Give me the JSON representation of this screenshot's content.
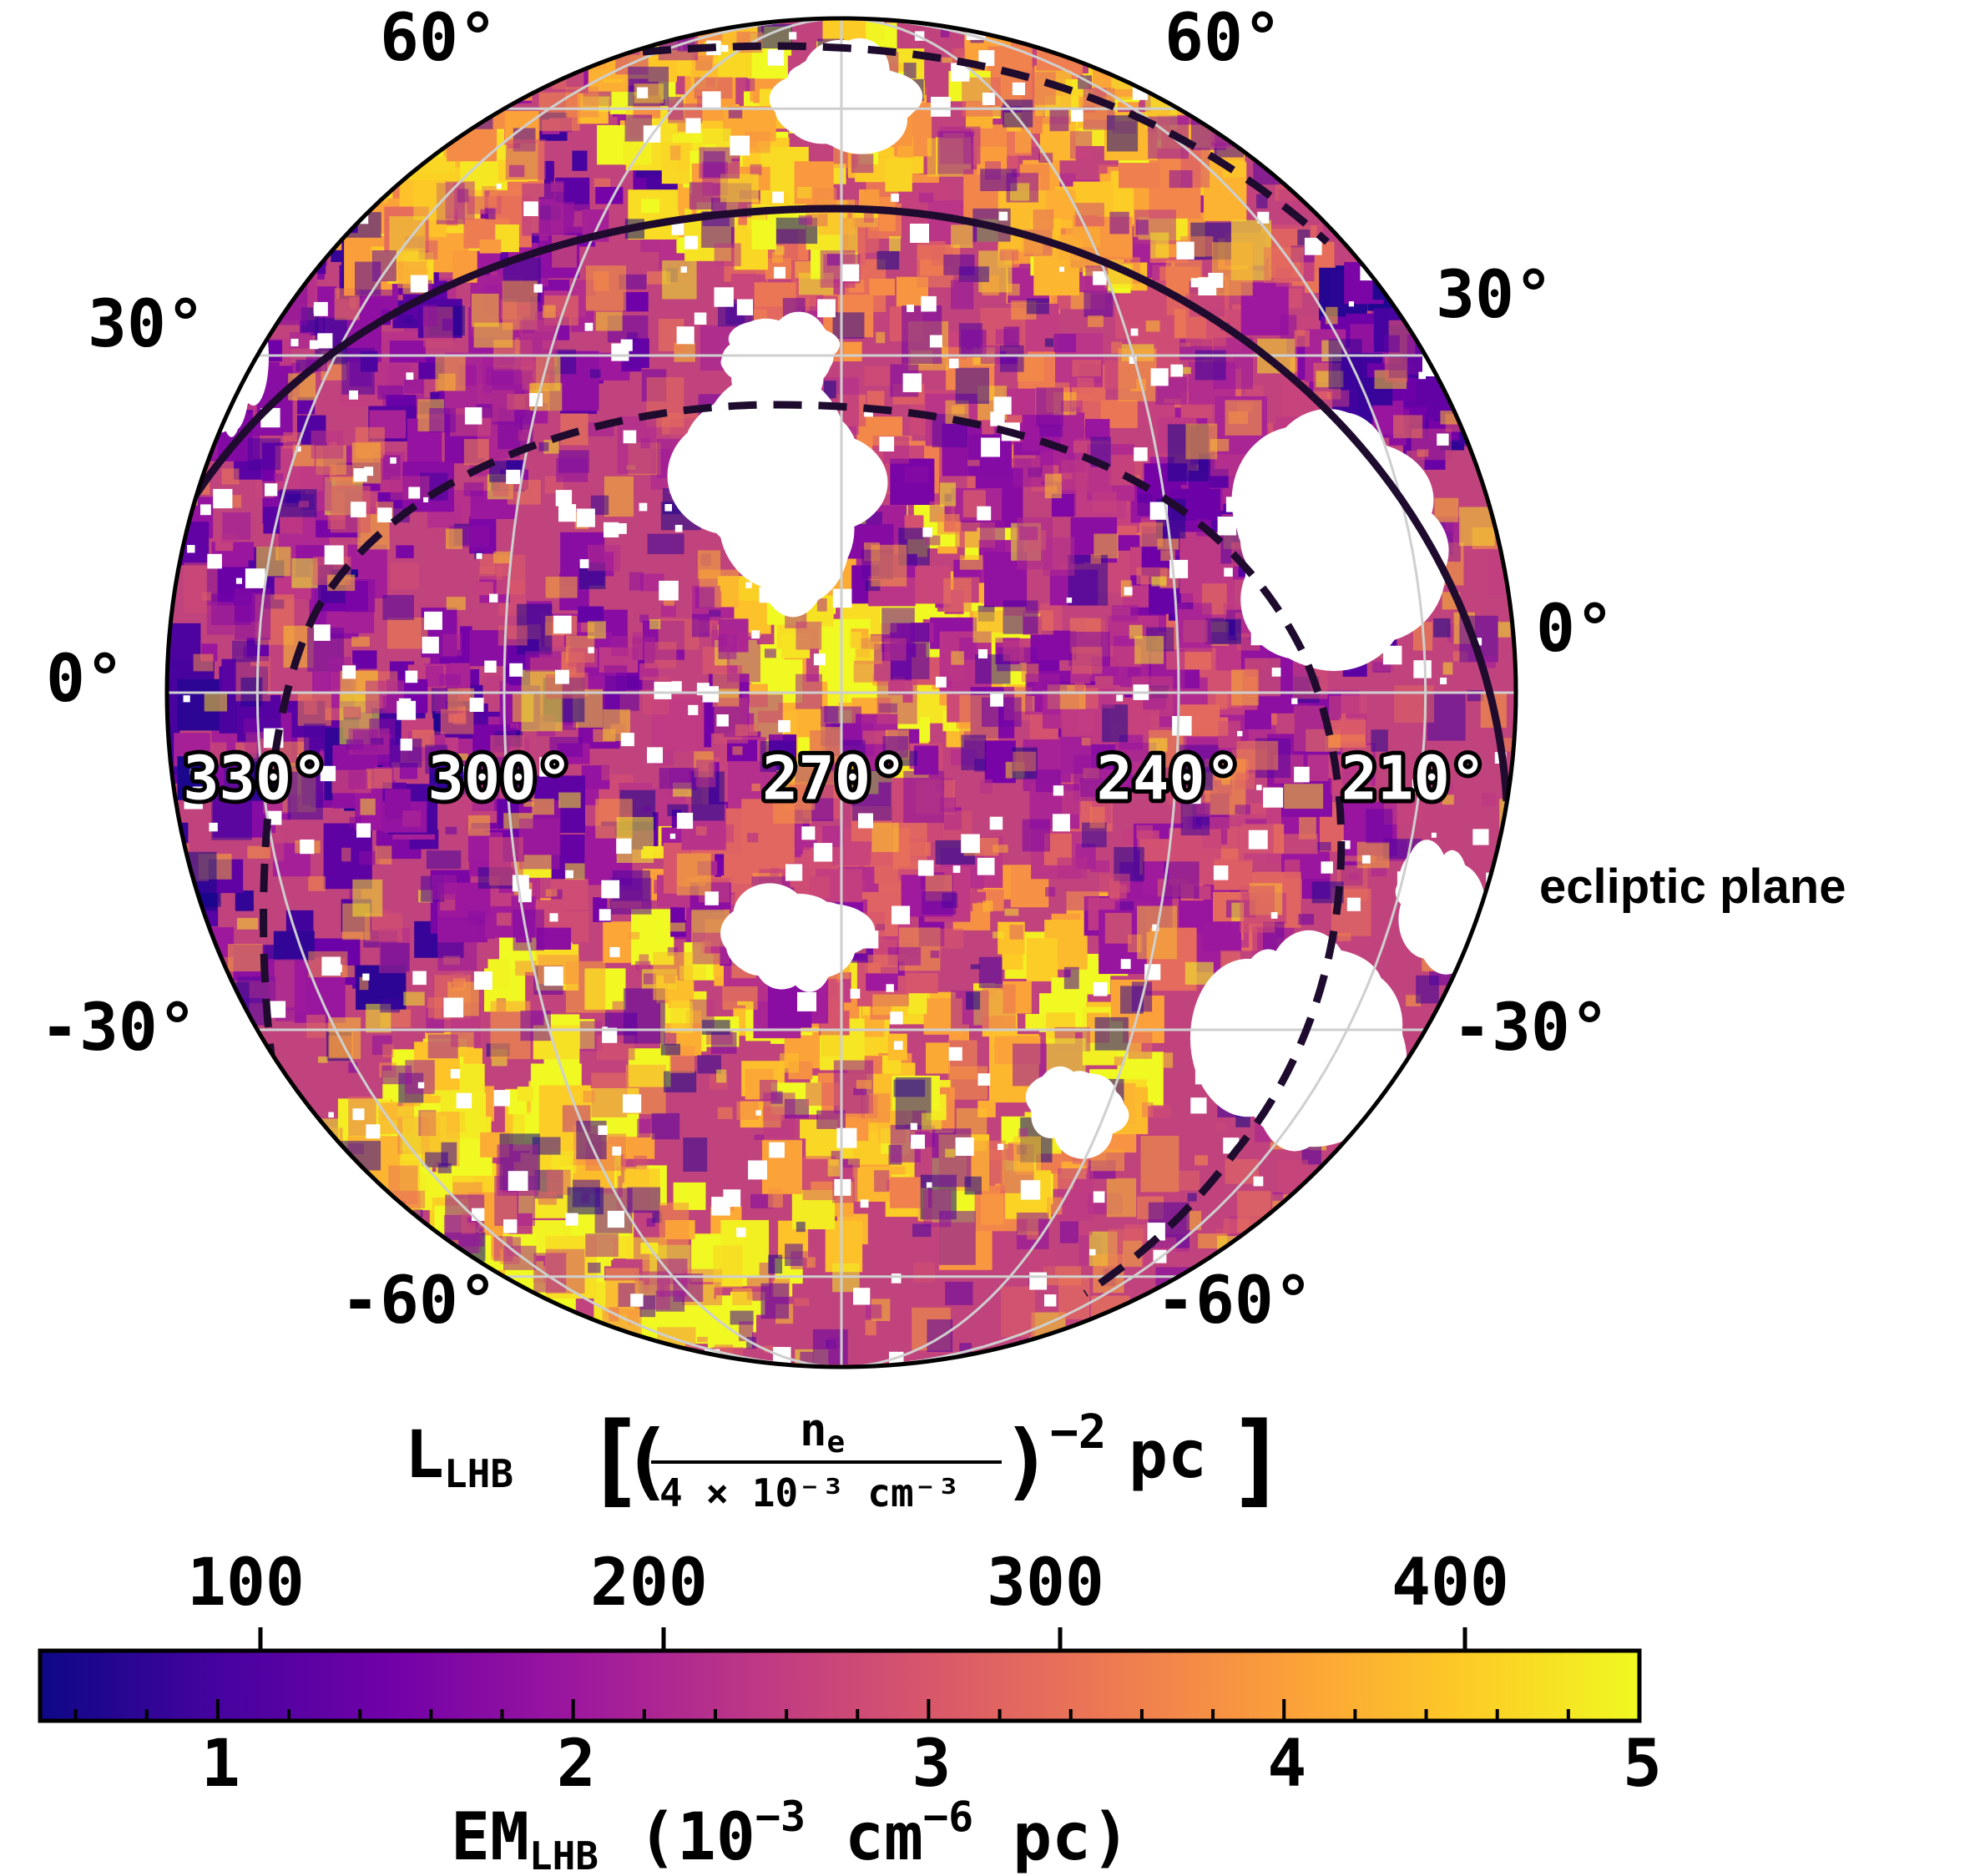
{
  "chart_data": {
    "type": "heatmap",
    "projection": "orthographic-hemisphere",
    "map_center": {
      "lon": 270,
      "lat": 0
    },
    "lat_labels_left": [
      "60°",
      "30°",
      "0°",
      "-30°",
      "-60°"
    ],
    "lat_labels_right": [
      "60°",
      "30°",
      "0°",
      "-30°",
      "-60°"
    ],
    "lat_values_left": [
      60,
      30,
      0,
      -30,
      -60
    ],
    "lat_values_right": [
      60,
      30,
      0,
      -30,
      -60
    ],
    "lon_labels": [
      "330°",
      "300°",
      "270°",
      "240°",
      "210°"
    ],
    "lon_values": [
      330,
      300,
      270,
      240,
      210
    ],
    "lat_grid": [
      -60,
      -30,
      0,
      30,
      60
    ],
    "lon_grid": [
      330,
      300,
      270,
      240,
      210
    ],
    "annotation": "ecliptic plane",
    "colormap": "plasma",
    "colormap_stops": [
      "#0d0887",
      "#46039f",
      "#7201a8",
      "#9c179e",
      "#bd3786",
      "#d8576b",
      "#ed7953",
      "#fb9f3a",
      "#fdca26",
      "#f0f921"
    ],
    "colorbar_bottom": {
      "label_main": "EM",
      "label_sub": "LHB",
      "label_units": " (10",
      "label_exp1": "−3",
      "label_mid": " cm",
      "label_exp2": "−6",
      "label_end": " pc)",
      "range": [
        0.5,
        5
      ],
      "ticks": [
        1,
        2,
        3,
        4,
        5
      ],
      "tick_labels": [
        "1",
        "2",
        "3",
        "4",
        "5"
      ]
    },
    "colorbar_top": {
      "label_main": "L",
      "label_sub": "LHB",
      "frac_num_main": "n",
      "frac_num_sub": "e",
      "frac_den": "4 × 10⁻³ cm⁻³",
      "exp": "−2",
      "unit": "pc",
      "ticks": [
        100,
        200,
        300,
        400
      ],
      "tick_labels": [
        "100",
        "200",
        "300",
        "400"
      ]
    },
    "overlay_lines": [
      {
        "name": "ecliptic plane",
        "style": "solid"
      },
      {
        "name": "",
        "style": "dashed"
      },
      {
        "name": "",
        "style": "dashed"
      }
    ]
  }
}
